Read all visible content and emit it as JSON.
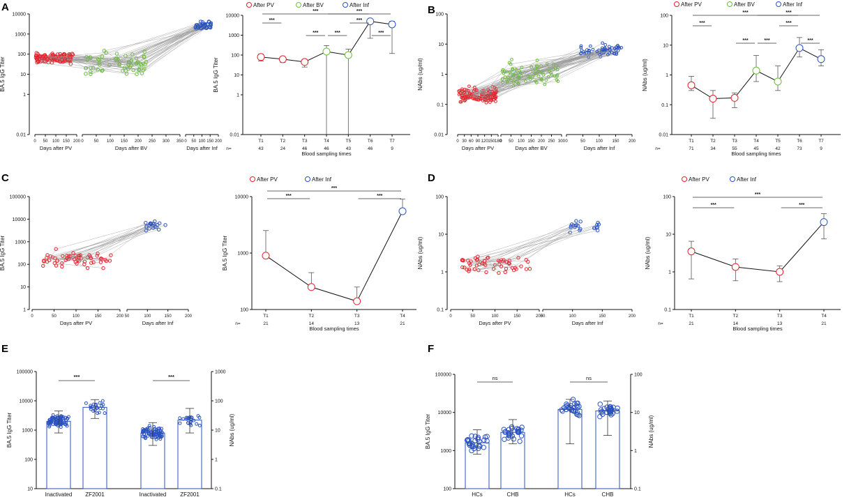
{
  "figure": {
    "panel_labels": [
      "A",
      "B",
      "C",
      "D",
      "E",
      "F"
    ],
    "n_label": "n=",
    "sig_label": "***",
    "ns_label": "ns"
  },
  "colors": {
    "pv": "#e8202a",
    "bv": "#6cbf3a",
    "inf": "#2a52be",
    "line": "#9a9a9a",
    "text": "#111111"
  },
  "legend": {
    "after_pv": "After PV",
    "after_bv": "After BV",
    "after_inf": "After Inf"
  },
  "chart_data": [
    {
      "id": "A-left",
      "type": "scatter",
      "ylabel": "BA.5 IgG Titer",
      "yscale": "log",
      "ylim": [
        0.01,
        10000
      ],
      "yticks": [
        "0.01",
        "1",
        "10",
        "100",
        "1000",
        "10000"
      ],
      "segments": [
        {
          "group": "pv",
          "xlabel": "Days after PV",
          "xlim": [
            0,
            200
          ],
          "xticks": [
            0,
            50,
            100,
            150,
            200
          ]
        },
        {
          "group": "bv",
          "xlabel": "Days after BV",
          "xlim": [
            0,
            350
          ],
          "xticks": [
            0,
            50,
            100,
            150,
            200,
            250,
            300,
            350
          ]
        },
        {
          "group": "inf",
          "xlabel": "Days after Inf",
          "xlim": [
            0,
            200
          ],
          "xticks": [
            0,
            50,
            100,
            150,
            200
          ]
        }
      ]
    },
    {
      "id": "A-right",
      "type": "line",
      "ylabel": "BA.5 IgG Titer",
      "xlabel": "Blood sampling times",
      "yscale": "log",
      "ylim": [
        0.01,
        10000
      ],
      "yticks": [
        "0.01",
        "1",
        "10",
        "100",
        "1000",
        "10000"
      ],
      "categories": [
        "T1",
        "T2",
        "T3",
        "T4",
        "T5",
        "T6",
        "T7"
      ],
      "n": [
        43,
        24,
        46,
        46,
        43,
        46,
        9
      ],
      "values": [
        80,
        62,
        45,
        150,
        100,
        5000,
        3500
      ],
      "err_low": [
        50,
        42,
        25,
        0.01,
        0.01,
        700,
        120
      ],
      "err_high": [
        110,
        80,
        58,
        300,
        200,
        6000,
        5000
      ],
      "groups": [
        "pv",
        "pv",
        "pv",
        "bv",
        "bv",
        "inf",
        "inf"
      ],
      "sig": [
        {
          "from": "T1",
          "to": "T2",
          "label": "***"
        },
        {
          "from": "T1",
          "to": "T6",
          "label": "***"
        },
        {
          "from": "T3",
          "to": "T4",
          "label": "***"
        },
        {
          "from": "T4",
          "to": "T5",
          "label": "***"
        },
        {
          "from": "T4",
          "to": "T7",
          "label": "***"
        },
        {
          "from": "T5",
          "to": "T6",
          "label": "***"
        },
        {
          "from": "T6",
          "to": "T7",
          "label": "***"
        }
      ]
    },
    {
      "id": "B-left",
      "type": "scatter",
      "ylabel": "NAbs (ug/ml)",
      "yscale": "log",
      "ylim": [
        0.01,
        100
      ],
      "yticks": [
        "0.01",
        "0.1",
        "1",
        "10",
        "100"
      ],
      "segments": [
        {
          "group": "pv",
          "xlabel": "Days after PV",
          "xlim": [
            0,
            180
          ],
          "xticks": [
            0,
            30,
            60,
            90,
            120,
            150,
            180
          ]
        },
        {
          "group": "bv",
          "xlabel": "Days after BV",
          "xlim": [
            0,
            300
          ],
          "xticks": [
            0,
            50,
            100,
            150,
            200,
            250,
            300
          ]
        },
        {
          "group": "inf",
          "xlabel": "Days after Inf",
          "xlim": [
            0,
            200
          ],
          "xticks": [
            0,
            50,
            100,
            150,
            200
          ]
        }
      ]
    },
    {
      "id": "B-right",
      "type": "line",
      "ylabel": "NAbs (ug/ml)",
      "xlabel": "Blood sampling times",
      "yscale": "log",
      "ylim": [
        0.01,
        100
      ],
      "yticks": [
        "0.01",
        "0.1",
        "1",
        "10",
        "100"
      ],
      "categories": [
        "T1",
        "T2",
        "T3",
        "T4",
        "T5",
        "T6",
        "T7"
      ],
      "n": [
        71,
        34,
        55,
        45,
        42,
        73,
        9
      ],
      "values": [
        0.45,
        0.16,
        0.17,
        1.4,
        0.6,
        8,
        3.4
      ],
      "err_low": [
        0.3,
        0.035,
        0.08,
        0.6,
        0.3,
        4,
        2
      ],
      "err_high": [
        0.9,
        0.3,
        0.25,
        4.5,
        2,
        18,
        7
      ],
      "groups": [
        "pv",
        "pv",
        "pv",
        "bv",
        "bv",
        "inf",
        "inf"
      ],
      "sig": [
        {
          "from": "T1",
          "to": "T2",
          "label": "***"
        },
        {
          "from": "T1",
          "to": "T6",
          "label": "***"
        },
        {
          "from": "T3",
          "to": "T4",
          "label": "***"
        },
        {
          "from": "T4",
          "to": "T5",
          "label": "***"
        },
        {
          "from": "T4",
          "to": "T7",
          "label": "***"
        },
        {
          "from": "T5",
          "to": "T6",
          "label": "***"
        },
        {
          "from": "T6",
          "to": "T7",
          "label": "***"
        }
      ]
    },
    {
      "id": "C-left",
      "type": "scatter",
      "ylabel": "BA.5 IgG Titer",
      "yscale": "log",
      "ylim": [
        1,
        100000
      ],
      "yticks": [
        "1",
        "10",
        "100",
        "1000",
        "10000",
        "100000"
      ],
      "segments": [
        {
          "group": "pv",
          "xlabel": "Days after PV",
          "xlim": [
            0,
            200
          ],
          "xticks": [
            0,
            50,
            100,
            150,
            200
          ]
        },
        {
          "group": "inf",
          "xlabel": "Days after Inf",
          "xlim": [
            50,
            200
          ],
          "xticks": [
            50,
            100,
            150,
            200
          ]
        }
      ]
    },
    {
      "id": "C-right",
      "type": "line",
      "ylabel": "BA.5 IgG Titer",
      "xlabel": "Blood sampling times",
      "yscale": "log",
      "ylim": [
        100,
        10000
      ],
      "yticks": [
        "100",
        "1000",
        "10000"
      ],
      "categories": [
        "T1",
        "T2",
        "T3",
        "T4"
      ],
      "n": [
        21,
        14,
        13,
        21
      ],
      "values": [
        900,
        250,
        140,
        5500
      ],
      "err_low": [
        900,
        250,
        140,
        5500
      ],
      "err_high": [
        2500,
        450,
        250,
        9000
      ],
      "groups": [
        "pv",
        "pv",
        "pv",
        "inf"
      ],
      "sig": [
        {
          "from": "T1",
          "to": "T2",
          "label": "***"
        },
        {
          "from": "T1",
          "to": "T4",
          "label": "***"
        },
        {
          "from": "T3",
          "to": "T4",
          "label": "***"
        }
      ]
    },
    {
      "id": "D-left",
      "type": "scatter",
      "ylabel": "NAbs (ug/ml)",
      "yscale": "log",
      "ylim": [
        0.1,
        100
      ],
      "yticks": [
        "0.1",
        "1",
        "10",
        "100"
      ],
      "segments": [
        {
          "group": "pv",
          "xlabel": "Days after PV",
          "xlim": [
            0,
            200
          ],
          "xticks": [
            0,
            50,
            100,
            150,
            200
          ]
        },
        {
          "group": "inf",
          "xlabel": "Days after Inf",
          "xlim": [
            50,
            200
          ],
          "xticks": [
            50,
            100,
            150,
            200
          ]
        }
      ]
    },
    {
      "id": "D-right",
      "type": "line",
      "ylabel": "NAbs (ug/ml)",
      "xlabel": "Blood sampling times",
      "yscale": "log",
      "ylim": [
        0.1,
        100
      ],
      "yticks": [
        "0.1",
        "1",
        "10",
        "100"
      ],
      "categories": [
        "T1",
        "T2",
        "T3",
        "T4"
      ],
      "n": [
        21,
        14,
        13,
        21
      ],
      "values": [
        3.5,
        1.35,
        1.0,
        21
      ],
      "err_low": [
        0.65,
        0.58,
        0.55,
        7.5
      ],
      "err_high": [
        6.5,
        2.2,
        1.45,
        35
      ],
      "groups": [
        "pv",
        "pv",
        "pv",
        "inf"
      ],
      "sig": [
        {
          "from": "T1",
          "to": "T2",
          "label": "***"
        },
        {
          "from": "T1",
          "to": "T4",
          "label": "***"
        },
        {
          "from": "T3",
          "to": "T4",
          "label": "***"
        }
      ]
    },
    {
      "id": "E",
      "type": "bar",
      "ylabel_left": "BA.5 IgG Titer",
      "ylabel_right": "NAbs (ug/ml)",
      "yscale": "log",
      "ylim_left": [
        10,
        100000
      ],
      "yticks_left": [
        "10",
        "100",
        "1000",
        "10000",
        "100000"
      ],
      "ylim_right": [
        0.1,
        1000
      ],
      "yticks_right": [
        "0.1",
        "1",
        "10",
        "100",
        "1000"
      ],
      "categories": [
        "Inactivated",
        "ZF2001",
        "Inactivated",
        "ZF2001"
      ],
      "axis": [
        "left",
        "left",
        "right",
        "right"
      ],
      "values": [
        2000,
        6000,
        8,
        22
      ],
      "err_low": [
        800,
        2500,
        3,
        8
      ],
      "err_high": [
        4500,
        11000,
        18,
        55
      ],
      "sig": [
        {
          "from": 0,
          "to": 1,
          "label": "***"
        },
        {
          "from": 2,
          "to": 3,
          "label": "***"
        }
      ]
    },
    {
      "id": "F",
      "type": "bar",
      "ylabel_left": "BA.5 IgG Titer",
      "ylabel_right": "NAbs (ug/ml)",
      "yscale": "log",
      "ylim_left": [
        100,
        100000
      ],
      "yticks_left": [
        "100",
        "1000",
        "10000",
        "100000"
      ],
      "ylim_right": [
        0.1,
        100
      ],
      "yticks_right": [
        "0.1",
        "1",
        "10",
        "100"
      ],
      "categories": [
        "HCs",
        "CHB",
        "HCs",
        "CHB"
      ],
      "axis": [
        "left",
        "left",
        "right",
        "right"
      ],
      "values": [
        1600,
        3000,
        12,
        11
      ],
      "err_low": [
        800,
        1500,
        1.5,
        2.5
      ],
      "err_high": [
        3500,
        6500,
        22,
        20
      ],
      "sig": [
        {
          "from": 0,
          "to": 1,
          "label": "ns"
        },
        {
          "from": 2,
          "to": 3,
          "label": "ns"
        }
      ]
    }
  ]
}
